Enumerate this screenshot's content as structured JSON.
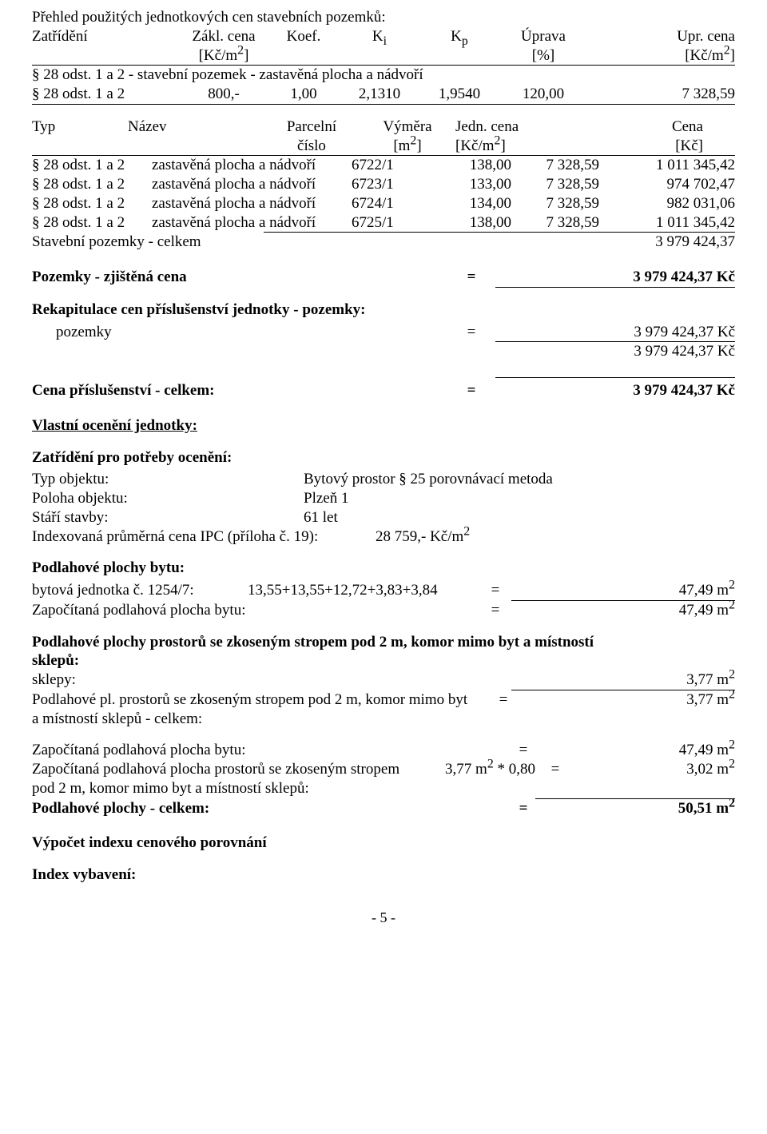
{
  "header": {
    "title": "Přehled použitých jednotkových cen stavebních pozemků:",
    "cols": {
      "c1": "Zatřídění",
      "c2_top": "Zákl. cena",
      "c2_bot": "[Kč/m",
      "c3": "Koef.",
      "c4": "K",
      "c4_sub": "i",
      "c5": "K",
      "c5_sub": "p",
      "c6_top": "Úprava",
      "c6_bot": "[%]",
      "c7_top": "Upr. cena",
      "c7_bot": "[Kč/m"
    },
    "row_a": "§ 28 odst. 1 a 2 - stavební pozemek - zastavěná plocha a nádvoří",
    "row_b": {
      "c1": "§ 28 odst. 1 a 2",
      "c2": "800,-",
      "c3": "1,00",
      "c4": "2,1310",
      "c5": "1,9540",
      "c6": "120,00",
      "c7": "7 328,59"
    }
  },
  "parcel_table": {
    "head": {
      "c1": "Typ",
      "c2": "Název",
      "c3_top": "Parcelní",
      "c3_bot": "číslo",
      "c4_top": "Výměra",
      "c4_bot": "[m",
      "c5_top": "Jedn. cena",
      "c5_bot": "[Kč/m",
      "c6_top": "Cena",
      "c6_bot": "[Kč]"
    },
    "rows": [
      {
        "c1": "§ 28 odst. 1 a 2",
        "c2": "zastavěná plocha a nádvoří",
        "c3": "6722/1",
        "c4": "138,00",
        "c5": "7 328,59",
        "c6": "1 011 345,42"
      },
      {
        "c1": "§ 28 odst. 1 a 2",
        "c2": "zastavěná plocha a nádvoří",
        "c3": "6723/1",
        "c4": "133,00",
        "c5": "7 328,59",
        "c6": "974 702,47"
      },
      {
        "c1": "§ 28 odst. 1 a 2",
        "c2": "zastavěná plocha a nádvoří",
        "c3": "6724/1",
        "c4": "134,00",
        "c5": "7 328,59",
        "c6": "982 031,06"
      },
      {
        "c1": "§ 28 odst. 1 a 2",
        "c2": "zastavěná plocha a nádvoří",
        "c3": "6725/1",
        "c4": "138,00",
        "c5": "7 328,59",
        "c6": "1 011 345,42"
      }
    ],
    "total": {
      "label": "Stavební pozemky - celkem",
      "value": "3 979 424,37"
    }
  },
  "summary1": {
    "l1": "Pozemky - zjištěná cena",
    "eq": "=",
    "v1": "3 979 424,37 Kč",
    "rec": "Rekapitulace cen příslušenství jednotky - pozemky:",
    "l2": "pozemky",
    "v2": "3 979 424,37 Kč",
    "v3": "3 979 424,37 Kč",
    "l3": "Cena příslušenství - celkem:",
    "v4": "3 979 424,37 Kč"
  },
  "section2": {
    "h1": "Vlastní ocenění jednotky:",
    "h2": "Zatřídění pro potřeby ocenění:",
    "rows": [
      {
        "k": "Typ objektu:",
        "v": "Bytový prostor § 25 porovnávací metoda"
      },
      {
        "k": "Poloha objektu:",
        "v": "Plzeň  1"
      },
      {
        "k": "Stáří stavby:",
        "v": "61 let"
      }
    ],
    "ipc_k": "Indexovaná průměrná cena IPC (příloha č. 19):",
    "ipc_v": "28 759,- Kč/m",
    "h3": "Podlahové plochy bytu:",
    "byt_k": "bytová jednotka č. 1254/7:",
    "byt_expr": "13,55+13,55+12,72+3,83+3,84",
    "byt_v": "47,49 m",
    "zap_k": "Započítaná podlahová plocha bytu:",
    "zap_v": "47,49 m",
    "h4a": "Podlahové plochy prostorů se zkoseným stropem pod 2 m, komor mimo byt a místností",
    "h4b": "sklepů:",
    "sklepy_k": "sklepy:",
    "sklepy_v": "3,77 m",
    "podl_k1": "Podlahové pl. prostorů se zkoseným stropem pod 2 m, komor mimo byt",
    "podl_k2": "a místností sklepů - celkem:",
    "podl_v": "3,77 m",
    "zap2_k": "Započítaná podlahová plocha bytu:",
    "zap2_v": "47,49 m",
    "zap3_k1": "Započítaná podlahová plocha prostorů se zkoseným stropem",
    "zap3_expr": "3,77 m",
    "zap3_mul": " * 0,80",
    "zap3_k2": "pod 2 m, komor mimo byt a místností sklepů:",
    "zap3_v": "3,02 m",
    "cel_k": "Podlahové plochy - celkem:",
    "cel_v": "50,51 m",
    "h5": "Výpočet indexu cenového porovnání",
    "h6": "Index vybavení:"
  },
  "footer": "- 5 -"
}
